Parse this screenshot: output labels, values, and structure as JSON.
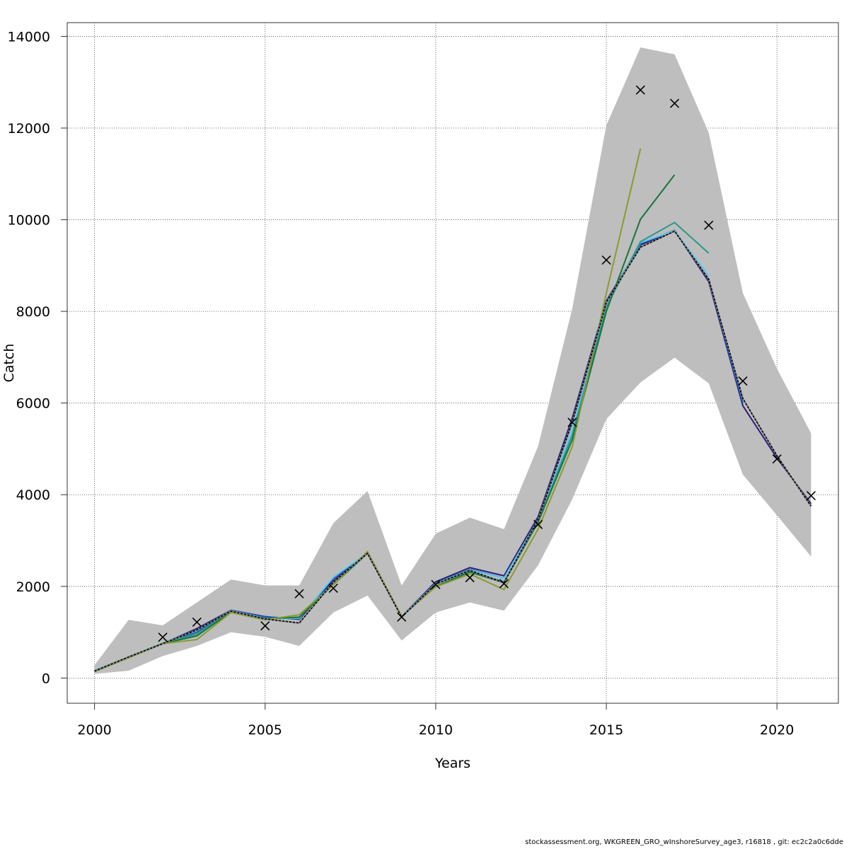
{
  "chart_data": {
    "type": "line",
    "title": "",
    "xlabel": "Years",
    "ylabel": "Catch",
    "xlim": [
      1999.2,
      2021.8
    ],
    "ylim": [
      -550,
      14300
    ],
    "xticks": [
      2000,
      2005,
      2010,
      2015,
      2020
    ],
    "yticks": [
      0,
      2000,
      4000,
      6000,
      8000,
      10000,
      12000,
      14000
    ],
    "grid": true,
    "band": {
      "x": [
        2000,
        2001,
        2002,
        2003,
        2004,
        2005,
        2006,
        2007,
        2008,
        2009,
        2010,
        2011,
        2012,
        2013,
        2014,
        2015,
        2016,
        2017,
        2018,
        2019,
        2020,
        2021
      ],
      "upper": [
        280,
        1270,
        1150,
        1650,
        2150,
        2020,
        2020,
        3380,
        4080,
        2020,
        3150,
        3500,
        3250,
        5060,
        8060,
        12060,
        13760,
        13610,
        11900,
        8400,
        6750,
        5340
      ],
      "lower": [
        90,
        160,
        480,
        700,
        1000,
        900,
        700,
        1430,
        1800,
        820,
        1430,
        1650,
        1470,
        2460,
        3900,
        5650,
        6450,
        6990,
        6430,
        4440,
        3550,
        2650
      ]
    },
    "points": {
      "x": [
        2002,
        2003,
        2005,
        2006,
        2007,
        2009,
        2010,
        2011,
        2012,
        2013,
        2014,
        2015,
        2016,
        2017,
        2018,
        2019,
        2020,
        2021
      ],
      "y": [
        890,
        1220,
        1140,
        1840,
        1960,
        1330,
        2040,
        2190,
        2060,
        3350,
        5580,
        9120,
        12830,
        12540,
        9880,
        6480,
        4780,
        3980
      ]
    },
    "series": [
      {
        "color": "#000000",
        "dashed": true,
        "x": [
          2000,
          2001,
          2002,
          2003,
          2004,
          2005,
          2006,
          2007,
          2008,
          2009,
          2010,
          2011,
          2012,
          2013,
          2014,
          2015,
          2016,
          2017,
          2018,
          2019,
          2020,
          2021
        ],
        "values": [
          150,
          460,
          750,
          1050,
          1460,
          1290,
          1200,
          2090,
          2720,
          1330,
          2050,
          2350,
          2080,
          3460,
          5580,
          8200,
          9400,
          9750,
          8700,
          6100,
          4850,
          3750
        ]
      },
      {
        "color": "#2a1f7a",
        "x": [
          2000,
          2001,
          2002,
          2003,
          2004,
          2005,
          2006,
          2007,
          2008,
          2009,
          2010,
          2011,
          2012,
          2013,
          2014,
          2015,
          2016,
          2017,
          2018,
          2019,
          2020,
          2021
        ],
        "values": [
          160,
          460,
          750,
          1080,
          1480,
          1340,
          1280,
          2130,
          2720,
          1340,
          2100,
          2410,
          2230,
          3520,
          5670,
          8230,
          9450,
          9760,
          8650,
          5940,
          4800,
          3800
        ]
      },
      {
        "color": "#1a5eb8",
        "x": [
          2000,
          2001,
          2002,
          2003,
          2004,
          2005,
          2006,
          2007,
          2008,
          2009,
          2010,
          2011,
          2012,
          2013,
          2014,
          2015,
          2016,
          2017,
          2018,
          2019
        ],
        "values": [
          160,
          460,
          750,
          1000,
          1470,
          1330,
          1300,
          2180,
          2730,
          1340,
          2070,
          2370,
          2180,
          3470,
          5570,
          8170,
          9480,
          9770,
          8700,
          6000
        ]
      },
      {
        "color": "#5bc8ef",
        "x": [
          2000,
          2001,
          2002,
          2003,
          2004,
          2005,
          2006,
          2007,
          2008,
          2009,
          2010,
          2011,
          2012,
          2013,
          2014,
          2015,
          2016,
          2017,
          2018
        ],
        "values": [
          160,
          460,
          760,
          1040,
          1470,
          1300,
          1300,
          2200,
          2730,
          1340,
          2060,
          2360,
          2180,
          3450,
          5400,
          8160,
          9500,
          9760,
          8780
        ]
      },
      {
        "color": "#2a9a8a",
        "x": [
          2000,
          2001,
          2002,
          2003,
          2004,
          2005,
          2006,
          2007,
          2008,
          2009,
          2010,
          2011,
          2012,
          2013,
          2014,
          2015,
          2016,
          2017,
          2018
        ],
        "values": [
          160,
          460,
          760,
          960,
          1460,
          1300,
          1320,
          2080,
          2720,
          1340,
          2050,
          2330,
          2100,
          3410,
          5300,
          8100,
          9520,
          9940,
          9270
        ]
      },
      {
        "color": "#18743c",
        "x": [
          2000,
          2001,
          2002,
          2003,
          2004,
          2005,
          2006,
          2007,
          2008,
          2009,
          2010,
          2011,
          2012,
          2013,
          2014,
          2015,
          2016,
          2017
        ],
        "values": [
          150,
          450,
          750,
          920,
          1440,
          1290,
          1330,
          2040,
          2720,
          1340,
          2000,
          2310,
          2080,
          3400,
          5200,
          8000,
          10010,
          10980
        ]
      },
      {
        "color": "#8a9a30",
        "x": [
          2000,
          2001,
          2002,
          2003,
          2004,
          2005,
          2006,
          2007,
          2008,
          2009,
          2010,
          2011,
          2012,
          2013,
          2014,
          2015,
          2016
        ],
        "values": [
          140,
          440,
          750,
          840,
          1430,
          1270,
          1380,
          2040,
          2760,
          1350,
          1990,
          2270,
          1930,
          3250,
          5050,
          8400,
          11550
        ]
      }
    ]
  },
  "footer": "stockassessment.org, WKGREEN_GRO_wInshoreSurvey_age3, r16818 , git: ec2c2a0c6dde"
}
